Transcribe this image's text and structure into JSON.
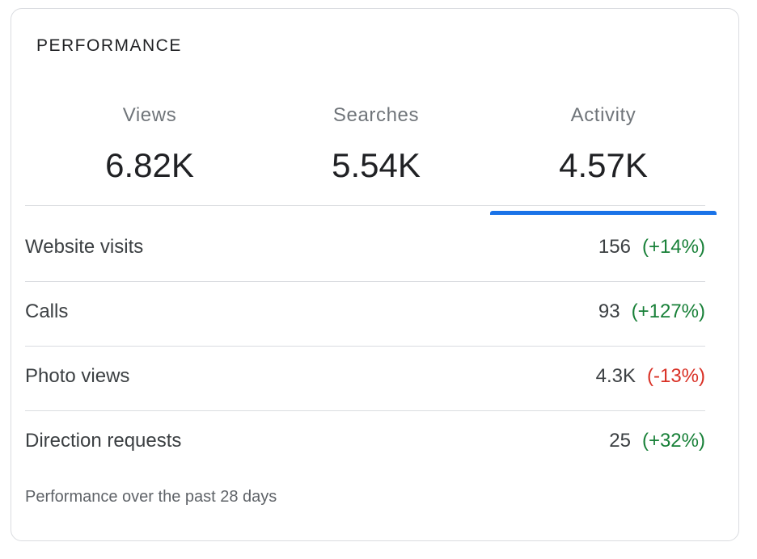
{
  "card": {
    "title": "PERFORMANCE"
  },
  "tabs": [
    {
      "label": "Views",
      "value": "6.82K",
      "active": false
    },
    {
      "label": "Searches",
      "value": "5.54K",
      "active": false
    },
    {
      "label": "Activity",
      "value": "4.57K",
      "active": true
    }
  ],
  "metrics": [
    {
      "label": "Website visits",
      "value": "156",
      "change": "(+14%)",
      "trend": "up"
    },
    {
      "label": "Calls",
      "value": "93",
      "change": "(+127%)",
      "trend": "up"
    },
    {
      "label": "Photo views",
      "value": "4.3K",
      "change": "(-13%)",
      "trend": "down"
    },
    {
      "label": "Direction requests",
      "value": "25",
      "change": "(+32%)",
      "trend": "up"
    }
  ],
  "footer": {
    "note": "Performance over the past 28 days"
  },
  "colors": {
    "accent": "#1a73e8",
    "positive": "#188038",
    "negative": "#d93025",
    "divider": "#dadce0"
  }
}
